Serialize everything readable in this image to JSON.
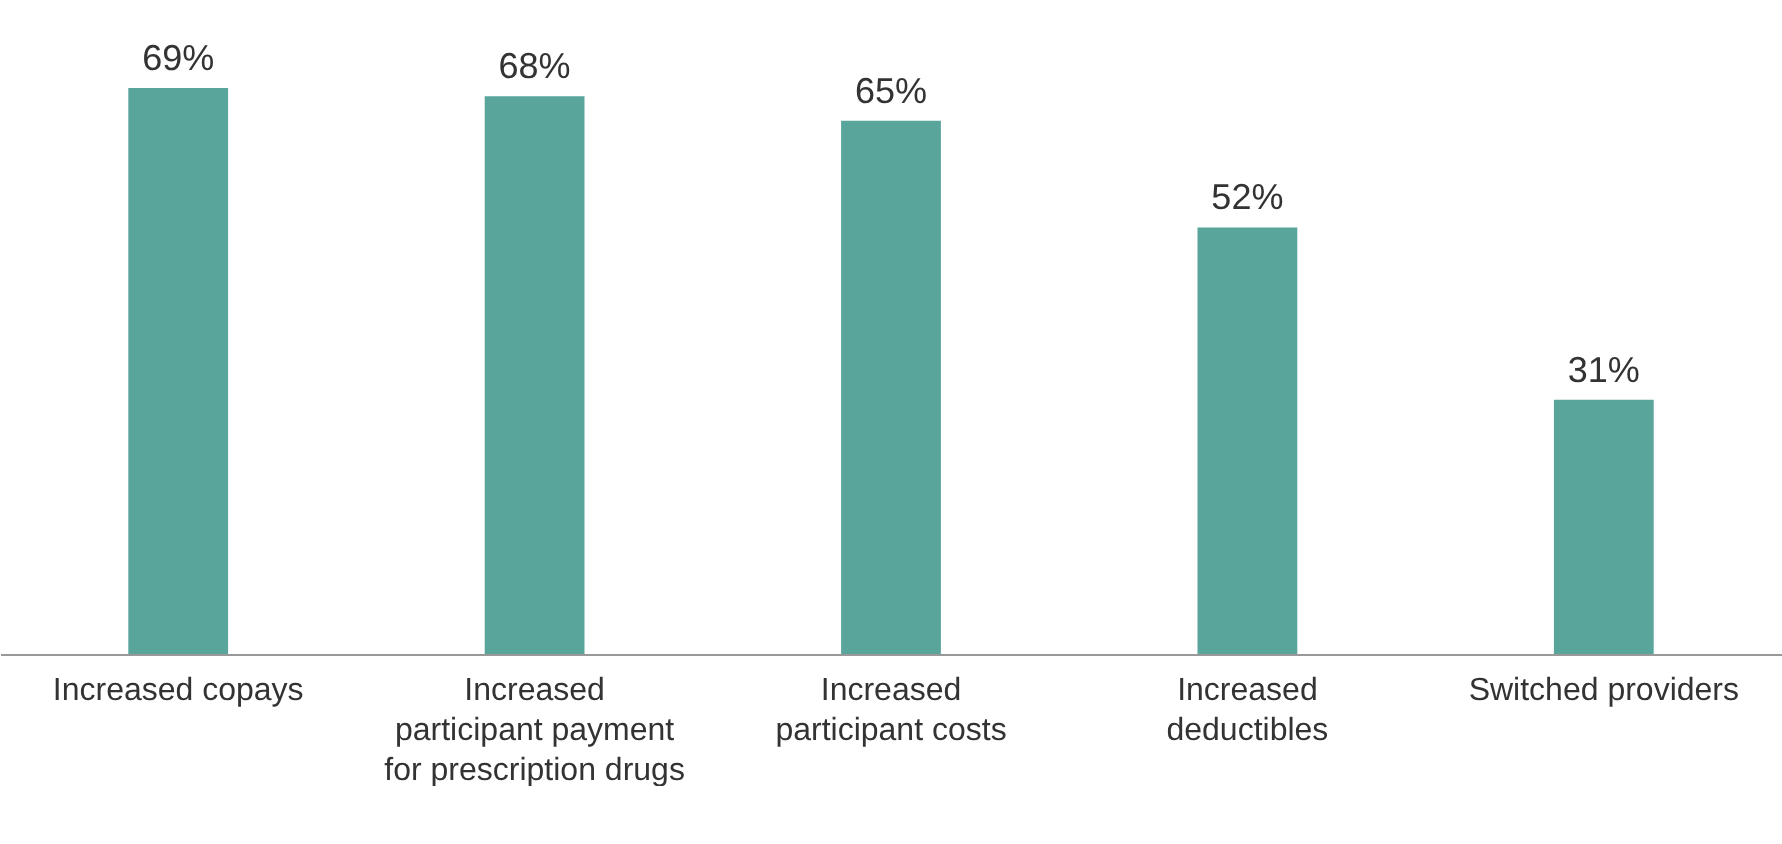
{
  "chart_data": {
    "type": "bar",
    "categories": [
      "Increased copays",
      "Increased\nparticipant payment\nfor prescription drugs",
      "Increased\nparticipant costs",
      "Increased\ndeductibles",
      "Switched providers"
    ],
    "values": [
      69,
      68,
      65,
      52,
      31
    ],
    "value_labels": [
      "69%",
      "68%",
      "65%",
      "52%",
      "31%"
    ],
    "color": "#59a59c"
  }
}
